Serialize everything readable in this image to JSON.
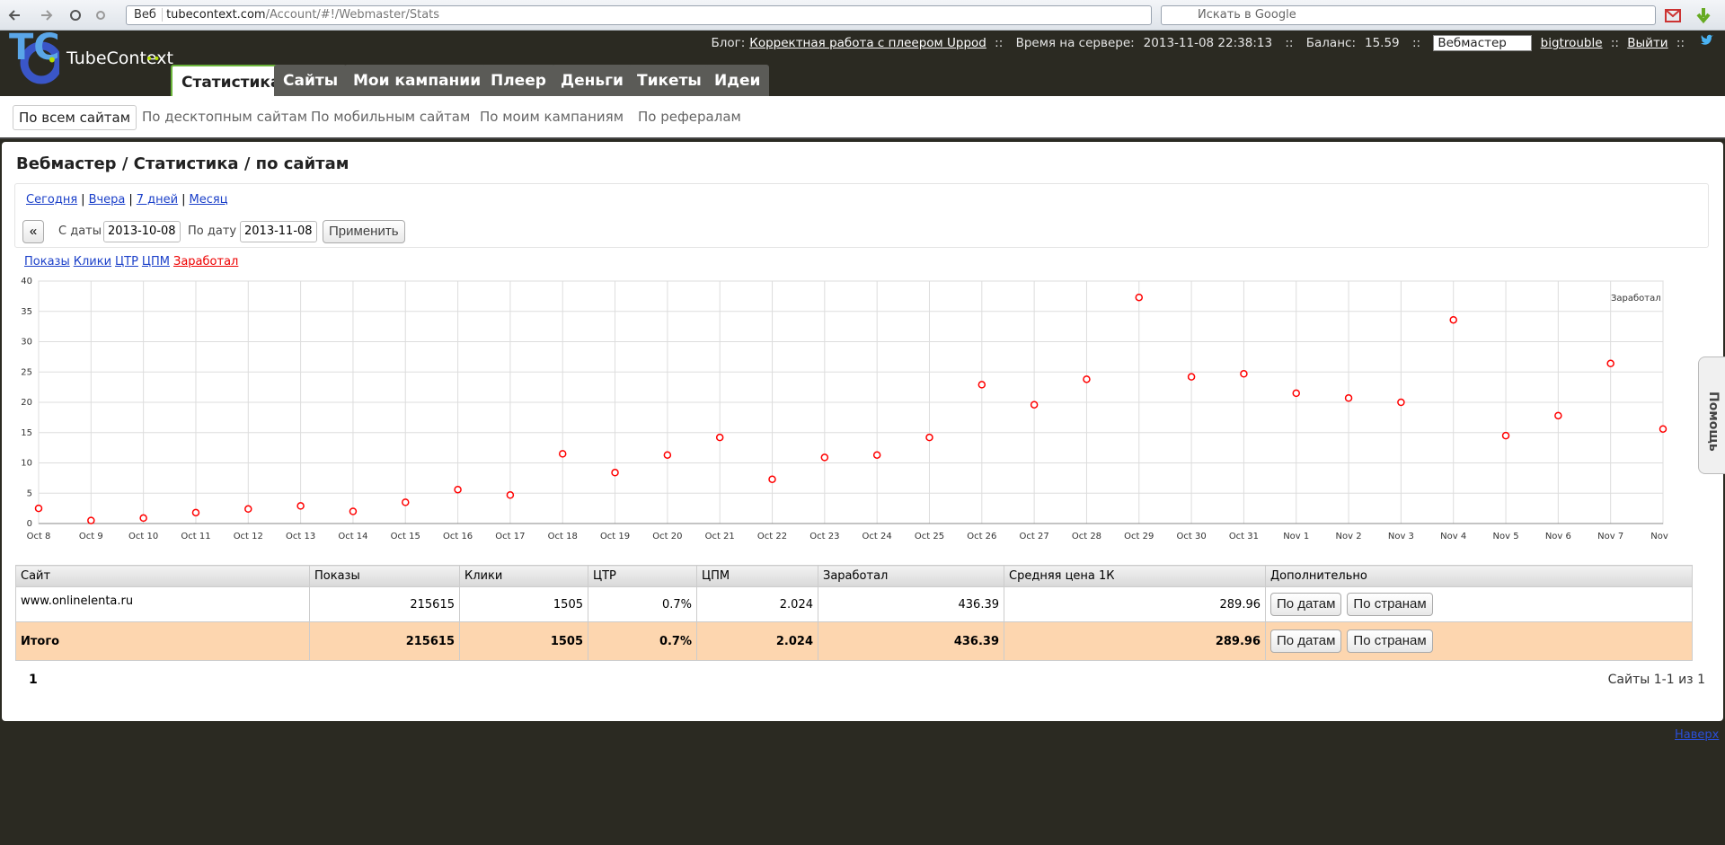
{
  "browser": {
    "search_engine": "Веб",
    "url_host": "tubecontext.com",
    "url_path": "/Account/#!/Webmaster/Stats",
    "search_placeholder": "Искать в Google"
  },
  "header": {
    "logo_mark": "TC",
    "logo": "TubeContext",
    "blog_label": "Блог:",
    "blog_link": "Корректная работа с плеером Uppod",
    "separator": "::",
    "server_time_label": "Время на сервере:",
    "server_time": "2013-11-08 22:38:13",
    "balance_label": "Баланс:",
    "balance": "15.59",
    "role": "Вебмастер",
    "user": "bigtrouble",
    "logout": "Выйти"
  },
  "nav": [
    "Статистика",
    "Сайты",
    "Мои кампании",
    "Плеер",
    "Деньги",
    "Тикеты",
    "Идеи"
  ],
  "subnav": [
    "По всем сайтам",
    "По десктопным сайтам",
    "По мобильным сайтам",
    "По моим кампаниям",
    "По рефералам"
  ],
  "help_tab": "Помощь",
  "page_title": "Вебмастер / Статистика / по сайтам",
  "periods": [
    "Сегодня",
    "Вчера",
    "7 дней",
    "Месяц"
  ],
  "period_separator": "|",
  "date_filter": {
    "prev": "«",
    "from_label": "С даты",
    "from": "2013-10-08",
    "to_label": "По дату",
    "to": "2013-11-08",
    "apply": "Применить"
  },
  "metrics": [
    "Показы",
    "Клики",
    "ЦТР",
    "ЦПМ",
    "Заработал"
  ],
  "chart": {
    "type": "line",
    "x": [
      "Oct 8",
      "Oct 9",
      "Oct 10",
      "Oct 11",
      "Oct 12",
      "Oct 13",
      "Oct 14",
      "Oct 15",
      "Oct 16",
      "Oct 17",
      "Oct 18",
      "Oct 19",
      "Oct 20",
      "Oct 21",
      "Oct 22",
      "Oct 23",
      "Oct 24",
      "Oct 25",
      "Oct 26",
      "Oct 27",
      "Oct 28",
      "Oct 29",
      "Oct 30",
      "Oct 31",
      "Nov 1",
      "Nov 2",
      "Nov 3",
      "Nov 4",
      "Nov 5",
      "Nov 6",
      "Nov 7",
      "Nov"
    ],
    "series": [
      {
        "name": "Заработал",
        "color": "#ff0000",
        "values": [
          2.5,
          0.5,
          0.9,
          1.8,
          2.4,
          2.9,
          2.0,
          3.5,
          5.6,
          4.7,
          11.5,
          8.4,
          11.3,
          14.2,
          7.3,
          10.9,
          11.3,
          14.2,
          22.9,
          19.6,
          23.8,
          37.3,
          24.2,
          24.7,
          21.5,
          20.7,
          20.0,
          33.6,
          14.5,
          17.8,
          26.4,
          15.6
        ]
      }
    ],
    "ylim": [
      0,
      40
    ],
    "yticks": [
      0,
      5,
      10,
      15,
      20,
      25,
      30,
      35,
      40
    ],
    "grid": true,
    "legend": "top-right"
  },
  "table": {
    "columns": [
      "Сайт",
      "Показы",
      "Клики",
      "ЦТР",
      "ЦПМ",
      "Заработал",
      "Средняя цена 1К",
      "Дополнительно"
    ],
    "rows": [
      [
        "www.onlinelenta.ru",
        215615,
        1505,
        "0.7%",
        2.024,
        436.39,
        289.96
      ]
    ],
    "total": [
      "Итого",
      215615,
      1505,
      "0.7%",
      2.024,
      436.39,
      289.96
    ],
    "actions": [
      "По датам",
      "По странам"
    ]
  },
  "pagination": {
    "page": 1,
    "summary": "Сайты 1-1 из 1"
  },
  "footer": {
    "top_link": "Наверх"
  }
}
